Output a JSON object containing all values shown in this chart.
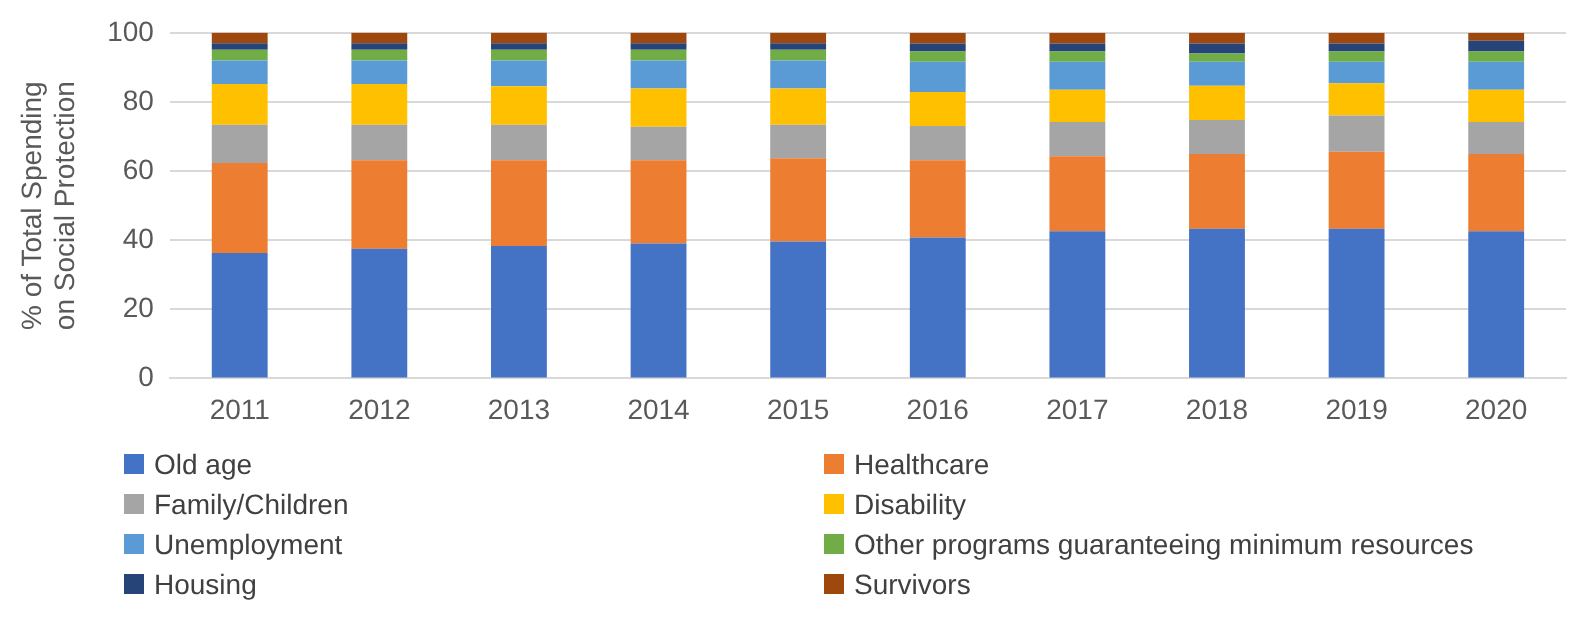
{
  "chart_data": {
    "type": "bar",
    "stacked": true,
    "ylabel": "% of Total Spending on Social Protection",
    "categories": [
      "2011",
      "2012",
      "2013",
      "2014",
      "2015",
      "2016",
      "2017",
      "2018",
      "2019",
      "2020"
    ],
    "series": [
      {
        "name": "Old age",
        "color": "#4472c4",
        "values": [
          36.3,
          37.5,
          38.3,
          39,
          39.6,
          40.8,
          42.6,
          43.3,
          43.3,
          42.6
        ]
      },
      {
        "name": "Healthcare",
        "color": "#ed7d31",
        "values": [
          26,
          25.6,
          24.8,
          24.1,
          24.1,
          22.3,
          21.7,
          21.6,
          22.3,
          22.3
        ]
      },
      {
        "name": "Family/Children",
        "color": "#a5a5a5",
        "values": [
          11.1,
          10.3,
          10.3,
          9.7,
          9.7,
          9.9,
          9.9,
          9.9,
          10.5,
          9.3
        ]
      },
      {
        "name": "Disability",
        "color": "#ffc000",
        "values": [
          11.8,
          11.8,
          11.1,
          11.1,
          10.5,
          9.9,
          9.3,
          9.9,
          9.3,
          9.3
        ]
      },
      {
        "name": "Unemployment",
        "color": "#5b9bd5",
        "values": [
          6.8,
          6.8,
          7.5,
          8.1,
          8.1,
          8.7,
          8.1,
          6.9,
          6.2,
          8.1
        ]
      },
      {
        "name": "Other programs guaranteeing minimum resources",
        "color": "#70ad47",
        "values": [
          3.1,
          3.1,
          3.1,
          3.1,
          3.1,
          3,
          3,
          2.4,
          3,
          3
        ]
      },
      {
        "name": "Housing",
        "color": "#264478",
        "values": [
          1.9,
          1.9,
          1.9,
          1.9,
          1.9,
          2.3,
          2.3,
          2.9,
          2.3,
          3.1
        ]
      },
      {
        "name": "Survivors",
        "color": "#9e480e",
        "values": [
          3.1,
          3.1,
          3.1,
          3.1,
          3.1,
          3.1,
          3.1,
          3.1,
          3.1,
          2.3
        ]
      }
    ],
    "ylim": [
      0,
      100
    ],
    "yticks": [
      0,
      20,
      40,
      60,
      80,
      100
    ],
    "grid": "y",
    "legend": "bottom"
  }
}
